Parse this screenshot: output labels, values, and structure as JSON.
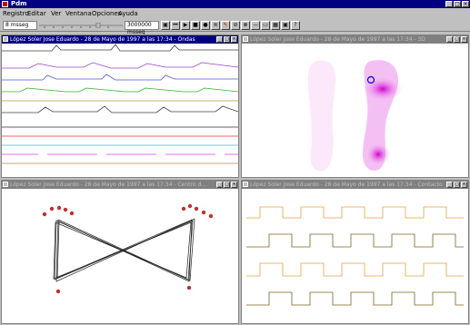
{
  "app": {
    "title": "Pdm",
    "window_buttons": {
      "minimize": "_",
      "maximize": "□",
      "close": "×"
    }
  },
  "menu": [
    "Registro",
    "Editar",
    "Ver",
    "Ventana",
    "Opciones",
    "Ayuda"
  ],
  "toolbar": {
    "left_field": "8 msseg",
    "right_field": "3000000 msseg"
  },
  "panels": {
    "ondas": {
      "title": "López Soler Jose Eduardo - 28 de Mayo de 1997 a las 17:34 - Ondas"
    },
    "3d": {
      "title": "López Soler Jose Eduardo - 28 de Mayo de 1997 a las 17:34 - 3D"
    },
    "centro": {
      "title": "López Soler Jose Eduardo - 28 de Mayo de 1997 a las 17:34 - Centro d..."
    },
    "contacto": {
      "title": "López Soler Jose Eduardo - 28 de Mayo de 1997 a las 17:34 - Contacto"
    }
  },
  "panel_buttons": {
    "minimize": "_",
    "maximize": "□",
    "close": "×"
  },
  "colors": {
    "titlebar": "#000080",
    "wave_colors": [
      "#404040",
      "#9a40c8",
      "#5050e0",
      "#30b030",
      "#c09030",
      "#404040",
      "#303030",
      "#e03030",
      "#30c0c0",
      "#e040e0",
      "#c08040"
    ],
    "pressure": "#d000d0",
    "contact_orange": "#e8a040",
    "contact_dark": "#806020",
    "marker_red": "#c03030"
  }
}
